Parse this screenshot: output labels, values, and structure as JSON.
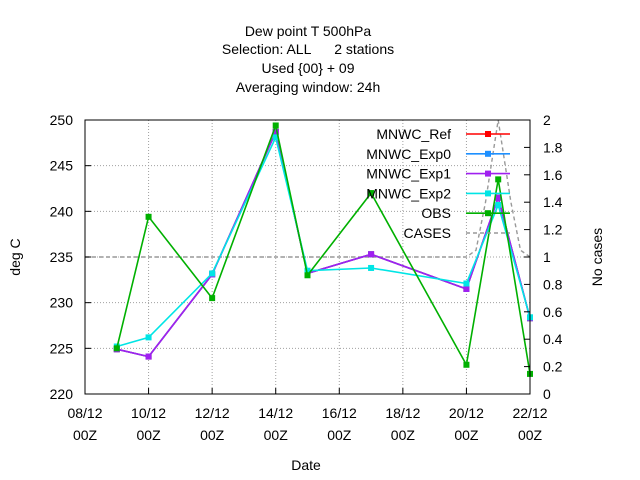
{
  "chart_data": {
    "type": "line",
    "title_lines": [
      "Dew point T 500hPa",
      "Selection: ALL      2 stations",
      "Used {00} + 09",
      "Averaging window: 24h"
    ],
    "xlabel": "Date",
    "ylabel": "deg C",
    "y2label": "No cases",
    "x_ticks": [
      {
        "x": 0,
        "line1": "08/12",
        "line2": "00Z"
      },
      {
        "x": 2,
        "line1": "10/12",
        "line2": "00Z"
      },
      {
        "x": 4,
        "line1": "12/12",
        "line2": "00Z"
      },
      {
        "x": 6,
        "line1": "14/12",
        "line2": "00Z"
      },
      {
        "x": 8,
        "line1": "16/12",
        "line2": "00Z"
      },
      {
        "x": 10,
        "line1": "18/12",
        "line2": "00Z"
      },
      {
        "x": 12,
        "line1": "20/12",
        "line2": "00Z"
      },
      {
        "x": 14,
        "line1": "22/12",
        "line2": "00Z"
      }
    ],
    "xlim": [
      0,
      14
    ],
    "ylim": [
      220,
      250
    ],
    "y_ticks": [
      "220",
      "225",
      "230",
      "235",
      "240",
      "245",
      "250"
    ],
    "y2lim": [
      0,
      2
    ],
    "y2_ticks": [
      "0",
      "0.2",
      "0.4",
      "0.6",
      "0.8",
      "1",
      "1.2",
      "1.4",
      "1.6",
      "1.8",
      "2"
    ],
    "grid": true,
    "legend_position": "top-right",
    "series": [
      {
        "name": "MNWC_Ref",
        "color": "#ff0000",
        "x": [
          1,
          2,
          4,
          6,
          7,
          9,
          12,
          13,
          14
        ],
        "y": [
          224.9,
          224.1,
          233.1,
          248.7,
          233.2,
          235.3,
          231.5,
          241.5,
          228.3
        ]
      },
      {
        "name": "MNWC_Exp0",
        "color": "#1e90ff",
        "x": [
          1,
          2,
          4,
          6,
          7,
          9,
          12,
          13,
          14
        ],
        "y": [
          224.9,
          224.1,
          233.1,
          248.7,
          233.2,
          235.3,
          231.5,
          241.5,
          228.3
        ]
      },
      {
        "name": "MNWC_Exp1",
        "color": "#a020f0",
        "x": [
          1,
          2,
          4,
          6,
          7,
          9,
          12,
          13,
          14
        ],
        "y": [
          224.9,
          224.1,
          233.1,
          248.7,
          233.2,
          235.3,
          231.5,
          241.5,
          228.3
        ]
      },
      {
        "name": "MNWC_Exp2",
        "color": "#00e5e5",
        "x": [
          1,
          2,
          4,
          6,
          7,
          9,
          12,
          13,
          14
        ],
        "y": [
          225.2,
          226.2,
          233.2,
          248.1,
          233.5,
          233.8,
          232.1,
          240.7,
          228.4
        ]
      },
      {
        "name": "OBS",
        "color": "#00b000",
        "x": [
          1,
          2,
          4,
          6,
          7,
          9,
          12,
          13,
          14
        ],
        "y": [
          225.0,
          239.4,
          230.5,
          249.4,
          233.0,
          242.0,
          223.2,
          243.5,
          222.2
        ]
      }
    ],
    "cases": {
      "name": "CASES",
      "color": "#999999",
      "axis": "y2",
      "x": [
        0,
        12,
        12.3,
        12.6,
        13,
        13.4,
        13.7,
        14
      ],
      "y": [
        1,
        1,
        1.05,
        1.4,
        2,
        1.4,
        1.05,
        1
      ]
    }
  }
}
